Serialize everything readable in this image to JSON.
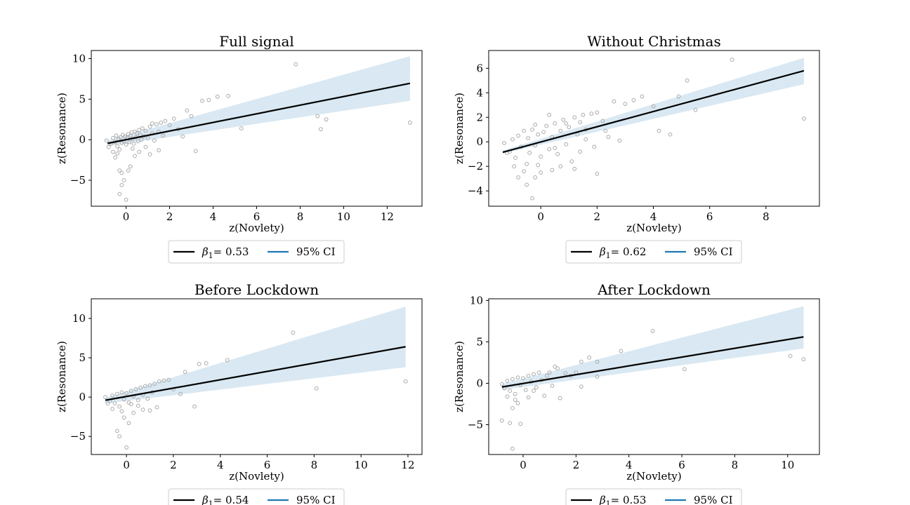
{
  "colors": {
    "regression_line": "#000000",
    "ci_fill": "#d9e8f2",
    "ci_legend": "#1f77b4",
    "points": "#aaaaaa",
    "legend_border": "#cccccc"
  },
  "chart_data": [
    {
      "type": "scatter",
      "title": "Full signal",
      "xlabel": "z(Novlety)",
      "ylabel": "z(Resonance)",
      "xlim": [
        -1.6,
        13.6
      ],
      "ylim": [
        -8.2,
        11.0
      ],
      "xticks": [
        0,
        2,
        4,
        6,
        8,
        10,
        12
      ],
      "yticks": [
        -5,
        0,
        5,
        10
      ],
      "fit_line": {
        "x": [
          -0.85,
          13.05
        ],
        "y": [
          -0.45,
          6.95
        ]
      },
      "ci_band": {
        "x": [
          -0.85,
          13.05
        ],
        "lower": [
          -0.8,
          4.8
        ],
        "upper": [
          -0.1,
          10.3
        ]
      },
      "points": [
        [
          -0.9,
          -0.1
        ],
        [
          -0.7,
          -0.5
        ],
        [
          -0.6,
          0.2
        ],
        [
          -0.5,
          -0.3
        ],
        [
          -0.45,
          0.5
        ],
        [
          -0.4,
          -0.8
        ],
        [
          -0.35,
          0.1
        ],
        [
          -0.3,
          -1.2
        ],
        [
          -0.25,
          0.3
        ],
        [
          -0.2,
          -0.4
        ],
        [
          -0.15,
          0.6
        ],
        [
          -0.1,
          -0.2
        ],
        [
          -0.05,
          0.4
        ],
        [
          0.0,
          -0.6
        ],
        [
          0.05,
          0.2
        ],
        [
          0.1,
          0.7
        ],
        [
          0.15,
          -0.3
        ],
        [
          0.2,
          0.5
        ],
        [
          0.25,
          0.9
        ],
        [
          0.3,
          0.1
        ],
        [
          0.35,
          -0.5
        ],
        [
          0.4,
          1.0
        ],
        [
          0.45,
          0.3
        ],
        [
          0.5,
          0.8
        ],
        [
          0.55,
          -0.2
        ],
        [
          0.6,
          1.2
        ],
        [
          0.65,
          0.6
        ],
        [
          0.7,
          0.0
        ],
        [
          0.75,
          1.4
        ],
        [
          0.8,
          0.4
        ],
        [
          0.9,
          1.1
        ],
        [
          1.0,
          0.2
        ],
        [
          1.1,
          1.6
        ],
        [
          1.2,
          0.8
        ],
        [
          1.3,
          -0.1
        ],
        [
          1.4,
          1.9
        ],
        [
          1.5,
          1.0
        ],
        [
          1.6,
          2.1
        ],
        [
          1.7,
          0.5
        ],
        [
          1.8,
          2.3
        ],
        [
          2.0,
          1.8
        ],
        [
          2.2,
          2.6
        ],
        [
          2.4,
          1.3
        ],
        [
          2.6,
          0.4
        ],
        [
          2.8,
          3.6
        ],
        [
          3.0,
          2.9
        ],
        [
          3.2,
          -1.4
        ],
        [
          3.5,
          4.8
        ],
        [
          3.8,
          4.9
        ],
        [
          4.2,
          5.3
        ],
        [
          4.7,
          5.4
        ],
        [
          5.3,
          1.4
        ],
        [
          7.8,
          9.3
        ],
        [
          8.8,
          2.9
        ],
        [
          8.95,
          1.3
        ],
        [
          9.2,
          2.5
        ],
        [
          13.05,
          2.1
        ],
        [
          -0.3,
          -3.8
        ],
        [
          -0.2,
          -4.1
        ],
        [
          -0.1,
          -5.0
        ],
        [
          -0.2,
          -5.6
        ],
        [
          -0.3,
          -6.7
        ],
        [
          0.0,
          -7.4
        ],
        [
          0.1,
          -3.8
        ],
        [
          0.2,
          -3.3
        ],
        [
          -0.5,
          -2.2
        ],
        [
          -0.4,
          -1.7
        ],
        [
          0.4,
          -2.0
        ],
        [
          0.6,
          -1.5
        ],
        [
          1.1,
          -1.8
        ],
        [
          1.5,
          -1.3
        ],
        [
          0.9,
          -0.9
        ],
        [
          -0.6,
          -1.5
        ],
        [
          -0.8,
          -0.9
        ],
        [
          0.3,
          -1.1
        ],
        [
          1.2,
          2.0
        ]
      ]
    },
    {
      "type": "scatter",
      "title": "Without Christmas",
      "xlabel": "z(Novlety)",
      "ylabel": "z(Resonance)",
      "xlim": [
        -1.85,
        9.9
      ],
      "ylim": [
        -5.25,
        7.45
      ],
      "xticks": [
        0,
        2,
        4,
        6,
        8
      ],
      "yticks": [
        -4,
        -2,
        0,
        2,
        4,
        6
      ],
      "fit_line": {
        "x": [
          -1.35,
          9.35
        ],
        "y": [
          -0.85,
          5.8
        ]
      },
      "ci_band": {
        "x": [
          -1.35,
          9.35
        ],
        "lower": [
          -0.95,
          4.7
        ],
        "upper": [
          -0.7,
          6.85
        ]
      },
      "points": [
        [
          -1.3,
          -0.1
        ],
        [
          -1.1,
          -0.8
        ],
        [
          -1.0,
          0.2
        ],
        [
          -0.9,
          -1.3
        ],
        [
          -0.8,
          0.5
        ],
        [
          -0.7,
          -0.4
        ],
        [
          -0.6,
          0.9
        ],
        [
          -0.5,
          -1.8
        ],
        [
          -0.45,
          0.3
        ],
        [
          -0.4,
          -0.9
        ],
        [
          -0.3,
          1.0
        ],
        [
          -0.2,
          -0.3
        ],
        [
          -0.1,
          0.6
        ],
        [
          0.0,
          -1.2
        ],
        [
          0.1,
          0.8
        ],
        [
          0.2,
          1.3
        ],
        [
          0.3,
          -0.6
        ],
        [
          0.4,
          0.4
        ],
        [
          0.5,
          1.5
        ],
        [
          0.6,
          -1.0
        ],
        [
          0.7,
          0.9
        ],
        [
          0.8,
          1.8
        ],
        [
          0.9,
          -0.2
        ],
        [
          1.0,
          1.2
        ],
        [
          1.1,
          -1.6
        ],
        [
          1.2,
          2.0
        ],
        [
          1.3,
          0.6
        ],
        [
          1.4,
          -0.8
        ],
        [
          1.5,
          2.2
        ],
        [
          1.6,
          1.0
        ],
        [
          1.8,
          2.3
        ],
        [
          1.9,
          -0.4
        ],
        [
          2.0,
          2.4
        ],
        [
          2.2,
          1.7
        ],
        [
          2.4,
          0.4
        ],
        [
          2.6,
          3.3
        ],
        [
          2.8,
          0.1
        ],
        [
          3.0,
          3.1
        ],
        [
          3.3,
          3.4
        ],
        [
          3.6,
          3.7
        ],
        [
          4.0,
          2.9
        ],
        [
          4.2,
          0.9
        ],
        [
          4.6,
          0.6
        ],
        [
          4.9,
          3.7
        ],
        [
          5.2,
          5.0
        ],
        [
          5.5,
          2.6
        ],
        [
          6.8,
          6.7
        ],
        [
          9.35,
          1.9
        ],
        [
          -0.3,
          -4.6
        ],
        [
          -0.5,
          -3.5
        ],
        [
          -0.2,
          -2.9
        ],
        [
          0.0,
          -2.5
        ],
        [
          -0.8,
          -2.9
        ],
        [
          -0.6,
          -2.4
        ],
        [
          0.4,
          -2.3
        ],
        [
          0.7,
          -2.0
        ],
        [
          1.2,
          -2.2
        ],
        [
          2.0,
          -2.6
        ],
        [
          -1.2,
          -0.9
        ],
        [
          -0.95,
          -2.0
        ],
        [
          -0.1,
          -1.9
        ],
        [
          0.5,
          -0.5
        ],
        [
          1.6,
          0.2
        ],
        [
          2.3,
          0.9
        ],
        [
          0.3,
          2.2
        ],
        [
          -0.2,
          1.4
        ],
        [
          0.9,
          1.5
        ],
        [
          1.4,
          1.6
        ]
      ]
    },
    {
      "type": "scatter",
      "title": "Before Lockdown",
      "xlabel": "z(Novlety)",
      "ylabel": "z(Resonance)",
      "xlim": [
        -1.5,
        12.6
      ],
      "ylim": [
        -7.3,
        12.5
      ],
      "xticks": [
        0,
        2,
        4,
        6,
        8,
        10,
        12
      ],
      "yticks": [
        -5,
        0,
        5,
        10
      ],
      "fit_line": {
        "x": [
          -0.9,
          11.9
        ],
        "y": [
          -0.4,
          6.4
        ]
      },
      "ci_band": {
        "x": [
          -0.9,
          11.9
        ],
        "lower": [
          -0.8,
          3.8
        ],
        "upper": [
          -0.1,
          11.5
        ]
      },
      "points": [
        [
          -0.9,
          0.0
        ],
        [
          -0.7,
          -0.5
        ],
        [
          -0.6,
          0.2
        ],
        [
          -0.5,
          -0.8
        ],
        [
          -0.4,
          0.4
        ],
        [
          -0.3,
          -1.2
        ],
        [
          -0.2,
          0.6
        ],
        [
          -0.1,
          -0.3
        ],
        [
          0.0,
          0.5
        ],
        [
          0.1,
          -0.7
        ],
        [
          0.2,
          0.8
        ],
        [
          0.3,
          0.1
        ],
        [
          0.4,
          1.0
        ],
        [
          0.5,
          -0.4
        ],
        [
          0.6,
          1.2
        ],
        [
          0.7,
          0.3
        ],
        [
          0.8,
          1.4
        ],
        [
          0.9,
          -0.2
        ],
        [
          1.0,
          1.5
        ],
        [
          1.1,
          0.6
        ],
        [
          1.2,
          1.7
        ],
        [
          1.3,
          -1.3
        ],
        [
          1.4,
          2.0
        ],
        [
          1.6,
          2.1
        ],
        [
          1.8,
          2.2
        ],
        [
          2.0,
          1.0
        ],
        [
          2.3,
          0.4
        ],
        [
          2.5,
          3.2
        ],
        [
          2.9,
          -1.2
        ],
        [
          3.1,
          4.2
        ],
        [
          3.4,
          4.3
        ],
        [
          4.3,
          4.7
        ],
        [
          7.1,
          8.2
        ],
        [
          8.1,
          1.1
        ],
        [
          11.9,
          2.0
        ],
        [
          -0.4,
          -4.3
        ],
        [
          -0.3,
          -5.0
        ],
        [
          0.0,
          -6.4
        ],
        [
          0.1,
          -3.3
        ],
        [
          -0.1,
          -2.6
        ],
        [
          0.3,
          -2.0
        ],
        [
          0.7,
          -1.6
        ],
        [
          1.0,
          -1.7
        ],
        [
          -0.6,
          -1.5
        ],
        [
          -0.8,
          -0.8
        ],
        [
          0.5,
          -1.1
        ],
        [
          0.2,
          -0.9
        ],
        [
          -0.2,
          -1.8
        ]
      ]
    },
    {
      "type": "scatter",
      "title": "After Lockdown",
      "xlabel": "z(Novlety)",
      "ylabel": "z(Resonance)",
      "xlim": [
        -1.3,
        11.2
      ],
      "ylim": [
        -8.6,
        10.2
      ],
      "xticks": [
        0,
        2,
        4,
        6,
        8,
        10
      ],
      "yticks": [
        -5,
        0,
        5,
        10
      ],
      "fit_line": {
        "x": [
          -0.8,
          10.6
        ],
        "y": [
          -0.45,
          5.6
        ]
      },
      "ci_band": {
        "x": [
          -0.8,
          10.6
        ],
        "lower": [
          -0.8,
          4.2
        ],
        "upper": [
          -0.1,
          9.3
        ]
      },
      "points": [
        [
          -0.8,
          -0.1
        ],
        [
          -0.7,
          -0.6
        ],
        [
          -0.6,
          0.3
        ],
        [
          -0.5,
          -0.9
        ],
        [
          -0.4,
          0.5
        ],
        [
          -0.3,
          -1.3
        ],
        [
          -0.2,
          0.7
        ],
        [
          -0.1,
          -0.2
        ],
        [
          0.0,
          0.6
        ],
        [
          0.1,
          -0.8
        ],
        [
          0.2,
          0.9
        ],
        [
          0.3,
          0.2
        ],
        [
          0.4,
          1.1
        ],
        [
          0.5,
          -0.5
        ],
        [
          0.6,
          1.3
        ],
        [
          0.7,
          0.4
        ],
        [
          0.8,
          -1.5
        ],
        [
          0.9,
          0.9
        ],
        [
          1.0,
          1.3
        ],
        [
          1.1,
          -0.3
        ],
        [
          1.2,
          2.0
        ],
        [
          1.3,
          1.8
        ],
        [
          1.4,
          -1.8
        ],
        [
          1.6,
          1.2
        ],
        [
          1.8,
          0.9
        ],
        [
          2.0,
          1.3
        ],
        [
          2.2,
          2.6
        ],
        [
          2.2,
          -0.4
        ],
        [
          2.5,
          3.1
        ],
        [
          2.8,
          2.6
        ],
        [
          2.8,
          0.8
        ],
        [
          3.7,
          3.9
        ],
        [
          4.9,
          6.3
        ],
        [
          6.1,
          1.7
        ],
        [
          10.1,
          3.3
        ],
        [
          10.6,
          2.9
        ],
        [
          -0.8,
          -4.5
        ],
        [
          -0.5,
          -4.8
        ],
        [
          -0.1,
          -4.9
        ],
        [
          -0.4,
          -7.9
        ],
        [
          -0.4,
          -3.0
        ],
        [
          -0.2,
          -2.4
        ],
        [
          -0.6,
          -1.6
        ],
        [
          0.4,
          -0.9
        ],
        [
          0.2,
          -1.7
        ],
        [
          -0.3,
          -2.0
        ]
      ]
    }
  ],
  "legends": [
    {
      "beta_symbol": "β",
      "beta_sub": "1",
      "beta_value": "= 0.53",
      "ci_label": "95% CI"
    },
    {
      "beta_symbol": "β",
      "beta_sub": "1",
      "beta_value": "= 0.62",
      "ci_label": "95% CI"
    },
    {
      "beta_symbol": "β",
      "beta_sub": "1",
      "beta_value": "= 0.54",
      "ci_label": "95% CI"
    },
    {
      "beta_symbol": "β",
      "beta_sub": "1",
      "beta_value": "= 0.53",
      "ci_label": "95% CI"
    }
  ]
}
